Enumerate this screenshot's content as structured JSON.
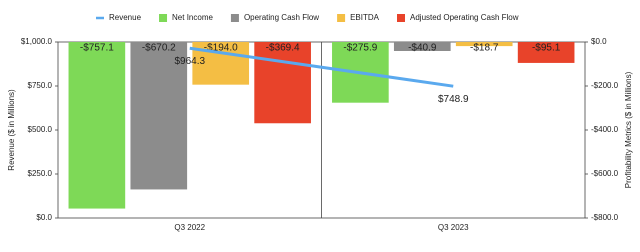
{
  "chart_data": {
    "type": "bar",
    "categories": [
      "Q3 2022",
      "Q3 2023"
    ],
    "y_label": "Revenue ($ in Millions)",
    "y2_label": "Profitability Metrics ($ in Millions)",
    "ylim": [
      0,
      1000
    ],
    "yticks": [
      {
        "value": 0,
        "label": "$0.0"
      },
      {
        "value": 250,
        "label": "$250.0"
      },
      {
        "value": 500,
        "label": "$500.0"
      },
      {
        "value": 750,
        "label": "$750.0"
      },
      {
        "value": 1000,
        "label": "$1,000.0"
      }
    ],
    "y2lim": [
      -800,
      0
    ],
    "y2ticks": [
      {
        "value": 0,
        "label": "$0.0"
      },
      {
        "value": -200,
        "label": "-$200.0"
      },
      {
        "value": -400,
        "label": "-$400.0"
      },
      {
        "value": -600,
        "label": "-$600.0"
      },
      {
        "value": -800,
        "label": "-$800.0"
      }
    ],
    "legend": "top",
    "series": [
      {
        "name": "Revenue",
        "type": "line",
        "color": "#5aa9ee",
        "values": [
          964.3,
          748.9
        ],
        "value_labels": [
          "$964.3",
          "$748.9"
        ]
      },
      {
        "name": "Net Income",
        "axis": "y2",
        "color": "#7ed957",
        "values": [
          -757.1,
          -275.9
        ],
        "value_labels": [
          "-$757.1",
          "-$275.9"
        ]
      },
      {
        "name": "Operating Cash Flow",
        "axis": "y2",
        "color": "#8c8c8c",
        "values": [
          -670.2,
          -40.9
        ],
        "value_labels": [
          "-$670.2",
          "-$40.9"
        ]
      },
      {
        "name": "EBITDA",
        "axis": "y2",
        "color": "#f4be44",
        "values": [
          -194.0,
          -18.7
        ],
        "value_labels": [
          "-$194.0",
          "-$18.7"
        ]
      },
      {
        "name": "Adjusted Operating Cash Flow",
        "axis": "y2",
        "color": "#e8432a",
        "values": [
          -369.4,
          -95.1
        ],
        "value_labels": [
          "-$369.4",
          "-$95.1"
        ]
      }
    ]
  }
}
